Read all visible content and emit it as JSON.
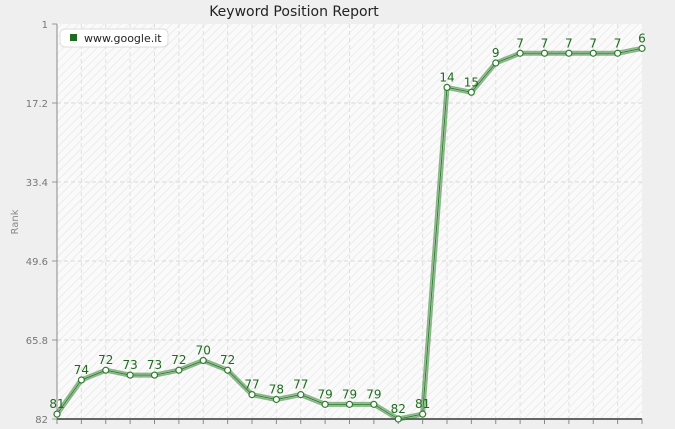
{
  "chart_data": {
    "type": "line",
    "title": "Keyword Position Report",
    "ylabel": "Rank",
    "xlabel": "",
    "y_ticks": [
      "1",
      "17.2",
      "33.4",
      "49.6",
      "65.8",
      "82"
    ],
    "ylim": [
      82,
      1
    ],
    "y_inverted": true,
    "grid": true,
    "legend_position": "top-left",
    "line_color": "#2e7d2e",
    "series": [
      {
        "name": "www.google.it",
        "values": [
          81,
          74,
          72,
          73,
          73,
          72,
          70,
          72,
          77,
          78,
          77,
          79,
          79,
          79,
          82,
          81,
          14,
          15,
          9,
          7,
          7,
          7,
          7,
          7,
          6
        ]
      }
    ]
  }
}
